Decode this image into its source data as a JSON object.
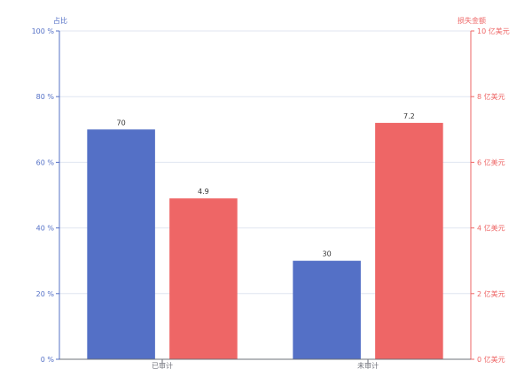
{
  "chart_data": {
    "type": "bar",
    "categories": [
      "已审计",
      "未审计"
    ],
    "series": [
      {
        "name": "",
        "axis": "left",
        "values": [
          70,
          30
        ],
        "color": "#5470c6"
      },
      {
        "name": "",
        "axis": "right",
        "values": [
          4.9,
          7.2
        ],
        "color": "#ee6666"
      }
    ],
    "y_left": {
      "name": "占比",
      "ylim": [
        0,
        100
      ],
      "ticks": [
        0,
        20,
        40,
        60,
        80,
        100
      ],
      "tick_labels": [
        "0 %",
        "20 %",
        "40 %",
        "60 %",
        "80 %",
        "100 %"
      ],
      "color": "#5470c6"
    },
    "y_right": {
      "name": "损失金额",
      "ylim": [
        0,
        10
      ],
      "ticks": [
        0,
        2,
        4,
        6,
        8,
        10
      ],
      "tick_labels": [
        "0 亿美元",
        "2 亿美元",
        "4 亿美元",
        "6 亿美元",
        "8 亿美元",
        "10 亿美元"
      ],
      "color": "#ee6666"
    },
    "data_labels": [
      [
        "70",
        "30"
      ],
      [
        "4.9",
        "7.2"
      ]
    ],
    "grid": true,
    "legend": "none"
  }
}
